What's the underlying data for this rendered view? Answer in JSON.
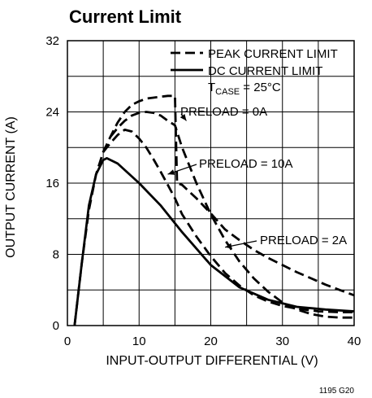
{
  "chart_data": {
    "type": "line",
    "title": "Current Limit",
    "xlabel": "INPUT-OUTPUT DIFFERENTIAL (V)",
    "ylabel": "OUTPUT CURRENT (A)",
    "xlim": [
      0,
      40
    ],
    "ylim": [
      0,
      32
    ],
    "x_ticks": [
      "0",
      "10",
      "20",
      "30",
      "40"
    ],
    "y_ticks": [
      "0",
      "8",
      "16",
      "24",
      "32"
    ],
    "grid": true,
    "legend_position": "top-right",
    "legend": [
      {
        "label": "PEAK CURRENT LIMIT",
        "style": "dashed"
      },
      {
        "label": "DC CURRENT LIMIT",
        "style": "solid"
      }
    ],
    "condition": {
      "prefix": "T",
      "subscript": "CASE",
      "suffix": " = 25°C"
    },
    "series": [
      {
        "style": "solid",
        "group": "DC",
        "x": [
          1,
          2,
          3,
          4,
          5,
          5.5,
          7,
          10,
          13,
          16,
          20,
          24,
          28,
          32,
          36,
          40
        ],
        "y": [
          0,
          7,
          13.5,
          17,
          18.6,
          18.8,
          18.2,
          16,
          13.5,
          10.5,
          6.8,
          4.3,
          2.9,
          2.1,
          1.8,
          1.6
        ]
      },
      {
        "style": "dashed",
        "group": "PEAK",
        "preload": "0A",
        "x": [
          1,
          2,
          3,
          4,
          5,
          6,
          7,
          8,
          9,
          10,
          11,
          12,
          13,
          14,
          15,
          15.3,
          16,
          18,
          20,
          22,
          24,
          26,
          28,
          30,
          32,
          34,
          36,
          38,
          40
        ],
        "y": [
          0,
          7,
          13,
          17,
          19.5,
          21.2,
          22.8,
          24,
          24.8,
          25.2,
          25.5,
          25.6,
          25.7,
          25.8,
          25.8,
          16,
          15.8,
          14.3,
          12.6,
          10.8,
          9.6,
          8.5,
          7.6,
          6.8,
          6,
          5.3,
          4.6,
          4,
          3.4
        ]
      },
      {
        "style": "dashed",
        "group": "PEAK",
        "preload": "2A",
        "x": [
          6,
          7,
          8,
          9,
          10,
          11,
          12,
          13,
          14,
          15,
          16,
          18,
          20,
          22,
          24,
          26,
          28,
          30,
          32,
          34,
          36,
          38,
          40
        ],
        "y": [
          21.2,
          22.2,
          23,
          23.6,
          23.9,
          24,
          23.9,
          23.6,
          23,
          22.5,
          20,
          16,
          12.5,
          9.6,
          7.2,
          5.3,
          3.8,
          2.6,
          1.8,
          1.3,
          1,
          0.9,
          0.9
        ]
      },
      {
        "style": "dashed",
        "group": "PEAK",
        "preload": "10A",
        "x": [
          5,
          6,
          7,
          8,
          9,
          10,
          11,
          12,
          13,
          14,
          15,
          16,
          18,
          20,
          22,
          24,
          26,
          28,
          30,
          32,
          35,
          38,
          40
        ],
        "y": [
          19.5,
          20.5,
          21.4,
          22,
          21.8,
          21,
          20,
          18.7,
          17.3,
          15.8,
          14.3,
          12.5,
          10,
          7.8,
          5.9,
          4.5,
          3.4,
          2.7,
          2.2,
          1.9,
          1.6,
          1.5,
          1.5
        ]
      }
    ],
    "annotations": [
      {
        "text": "PRELOAD = 0A",
        "points_to": [
          16.6,
          23
        ]
      },
      {
        "text": "PRELOAD = 10A",
        "points_to": [
          14,
          17
        ]
      },
      {
        "text": "PRELOAD = 2A",
        "points_to": [
          22,
          8.8
        ]
      }
    ],
    "footnote": "1195 G20",
    "colors": {
      "line": "#000000",
      "grid": "#000000",
      "background": "#ffffff"
    }
  }
}
